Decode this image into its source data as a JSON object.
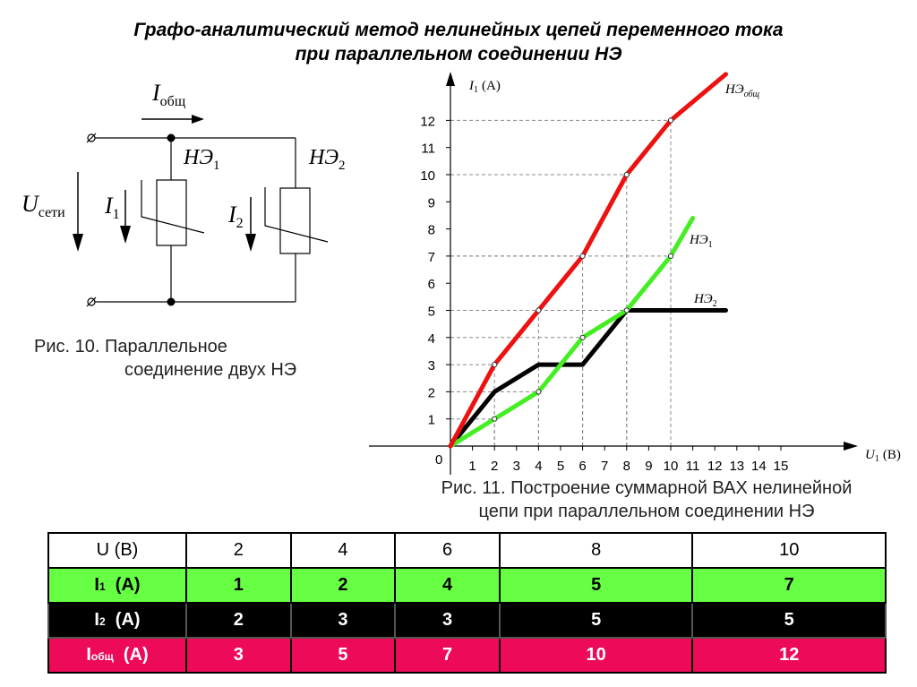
{
  "title": {
    "line1": "Графо-аналитический метод нелинейных цепей переменного тока",
    "line2": "при параллельном соединении НЭ"
  },
  "circuit": {
    "i_total": "I",
    "i_total_sub": "общ",
    "u_main": "U",
    "u_main_sub": "сети",
    "i1": "I",
    "i1_sub": "1",
    "i2": "I",
    "i2_sub": "2",
    "ne1": "НЭ",
    "ne1_sub": "1",
    "ne2": "НЭ",
    "ne2_sub": "2"
  },
  "caption_fig10": {
    "line1": "Рис. 10. Параллельное",
    "line2": "соединение двух НЭ"
  },
  "caption_fig11": {
    "line1": "Рис. 11. Построение суммарной ВАХ нелинейной",
    "line2": "цепи при параллельном соединении НЭ"
  },
  "chart_data": {
    "type": "line",
    "ylabel": "I",
    "ylabel_sub": "1",
    "ylabel_unit": "(A)",
    "xlabel": "U",
    "xlabel_sub": "1",
    "xlabel_unit": "(B)",
    "origin_label": "0",
    "xlim": [
      0,
      15
    ],
    "ylim": [
      0,
      12
    ],
    "x_ticks": [
      "1",
      "2",
      "3",
      "4",
      "5",
      "6",
      "7",
      "8",
      "9",
      "10",
      "11",
      "12",
      "13",
      "14",
      "15"
    ],
    "y_ticks": [
      "1",
      "2",
      "3",
      "4",
      "5",
      "6",
      "7",
      "8",
      "9",
      "10",
      "11",
      "12"
    ],
    "grid": "dashed guides at marked points",
    "series": [
      {
        "name": "НЭ",
        "name_sub": "общ",
        "color": "#ee1111",
        "points": [
          [
            0,
            0
          ],
          [
            2,
            3
          ],
          [
            4,
            5
          ],
          [
            6,
            7
          ],
          [
            8,
            10
          ],
          [
            10,
            12
          ],
          [
            12.5,
            13.7
          ]
        ]
      },
      {
        "name": "НЭ",
        "name_sub": "1",
        "color": "#44ee22",
        "points": [
          [
            0,
            0
          ],
          [
            2,
            1
          ],
          [
            4,
            2
          ],
          [
            6,
            4
          ],
          [
            8,
            5
          ],
          [
            10,
            7
          ],
          [
            11,
            8.4
          ]
        ]
      },
      {
        "name": "НЭ",
        "name_sub": "2",
        "color": "#000000",
        "points": [
          [
            0,
            0
          ],
          [
            2,
            2
          ],
          [
            4,
            3
          ],
          [
            6,
            3
          ],
          [
            8,
            5
          ],
          [
            12.5,
            5
          ]
        ]
      }
    ],
    "markers": [
      [
        2,
        1
      ],
      [
        2,
        3
      ],
      [
        4,
        2
      ],
      [
        4,
        5
      ],
      [
        6,
        4
      ],
      [
        6,
        7
      ],
      [
        8,
        5
      ],
      [
        8,
        10
      ],
      [
        10,
        7
      ],
      [
        10,
        12
      ]
    ]
  },
  "table": {
    "rows": [
      {
        "label": "U  (B)",
        "label_sub": "",
        "cells": [
          "2",
          "4",
          "6",
          "8",
          "10"
        ]
      },
      {
        "label": "I",
        "label_sub": "1",
        "label_tail": "  (A)",
        "cells": [
          "1",
          "2",
          "4",
          "5",
          "7"
        ]
      },
      {
        "label": "I",
        "label_sub": "2",
        "label_tail": "  (A)",
        "cells": [
          "2",
          "3",
          "3",
          "5",
          "5"
        ]
      },
      {
        "label": "I",
        "label_sub": "общ",
        "label_tail": "  (A)",
        "cells": [
          "3",
          "5",
          "7",
          "10",
          "12"
        ]
      }
    ]
  }
}
